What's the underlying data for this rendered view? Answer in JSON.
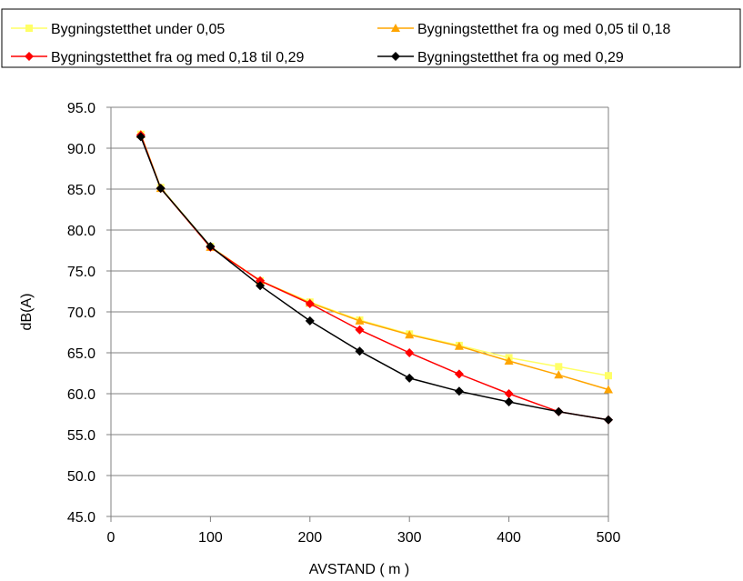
{
  "chart_data": {
    "type": "line",
    "xlabel": "AVSTAND ( m )",
    "ylabel": "dB(A)",
    "xlim": [
      0,
      500
    ],
    "ylim": [
      45.0,
      95.0
    ],
    "xticks": [
      "0",
      "100",
      "200",
      "300",
      "400",
      "500"
    ],
    "yticks": [
      "45.0",
      "50.0",
      "55.0",
      "60.0",
      "65.0",
      "70.0",
      "75.0",
      "80.0",
      "85.0",
      "90.0",
      "95.0"
    ],
    "grid": "horizontal",
    "legend_position": "top",
    "x": [
      30,
      50,
      100,
      150,
      200,
      250,
      300,
      350,
      400,
      450,
      500
    ],
    "series": [
      {
        "name": "Bygningstetthet under 0,05",
        "color": "#ffff66",
        "marker": "square",
        "values": [
          91.7,
          85.2,
          78.0,
          73.8,
          71.2,
          69.0,
          67.3,
          65.9,
          64.4,
          63.3,
          62.2
        ]
      },
      {
        "name": "Bygningstetthet fra og med 0,05 til 0,18",
        "color": "#ffa500",
        "marker": "triangle",
        "values": [
          91.7,
          85.1,
          77.9,
          73.8,
          71.1,
          68.9,
          67.2,
          65.8,
          64.0,
          62.3,
          60.5
        ]
      },
      {
        "name": "Bygningstetthet fra og med 0,18 til 0,29",
        "color": "#ff0000",
        "marker": "diamond",
        "values": [
          91.6,
          85.1,
          77.9,
          73.8,
          71.0,
          67.8,
          65.0,
          62.4,
          60.0,
          57.8,
          56.8
        ]
      },
      {
        "name": "Bygningstetthet fra og med 0,29",
        "color": "#000000",
        "marker": "diamond",
        "values": [
          91.4,
          85.1,
          78.0,
          73.2,
          68.9,
          65.2,
          61.9,
          60.3,
          59.0,
          57.8,
          56.8
        ]
      }
    ]
  }
}
